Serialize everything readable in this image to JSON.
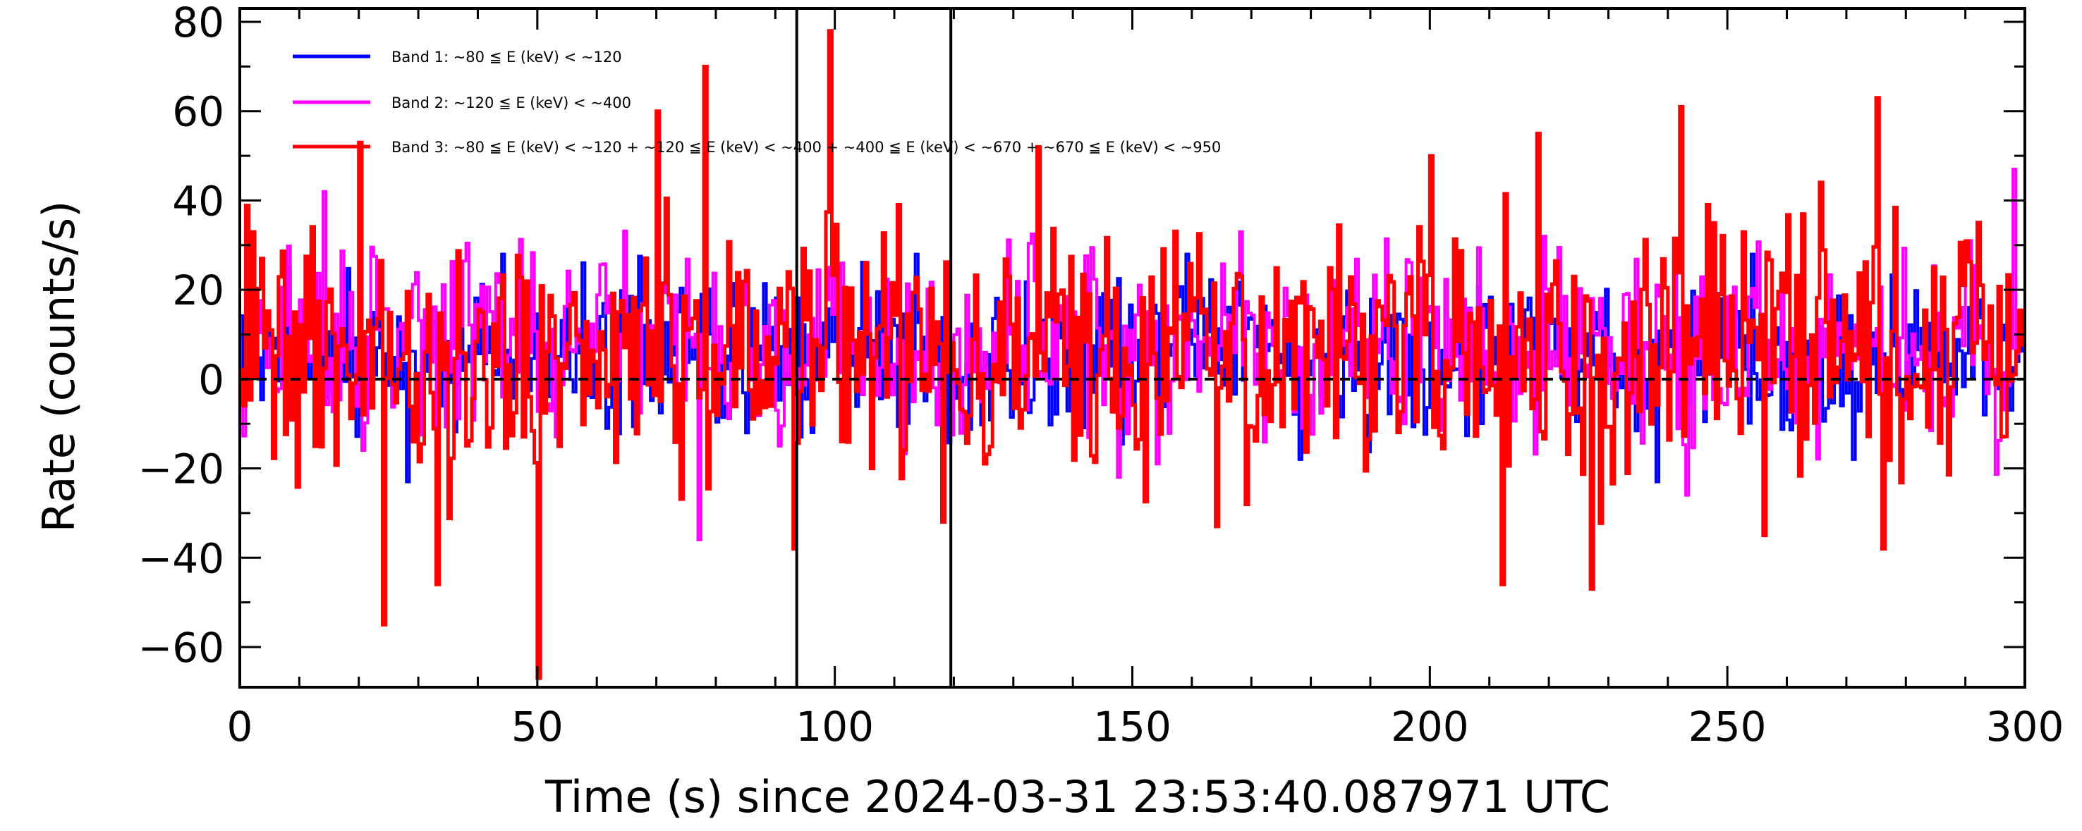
{
  "chart_data": {
    "type": "line",
    "xlabel": "Time (s) since 2024-03-31 23:53:40.087971 UTC",
    "ylabel": "Rate (counts/s)",
    "xlim": [
      0,
      300
    ],
    "ylim": [
      -69,
      83
    ],
    "xticks": [
      0,
      50,
      100,
      150,
      200,
      250,
      300
    ],
    "xtick_labels": [
      "0",
      "50",
      "100",
      "150",
      "200",
      "250",
      "300"
    ],
    "yticks": [
      -60,
      -40,
      -20,
      0,
      20,
      40,
      60,
      80
    ],
    "ytick_labels": [
      "−60",
      "−40",
      "−20",
      "0",
      "20",
      "40",
      "60",
      "80"
    ],
    "x_minor_step": 10,
    "y_minor_step": 10,
    "grid": false,
    "legend_position": "top-left",
    "vertical_lines": [
      93.6,
      119.5
    ],
    "reference_line": {
      "y": 0,
      "style": "dashed"
    },
    "bin_width": 0.5,
    "series": [
      {
        "name": "Band 1: ~80 ≦ E (keV) < ~120",
        "color": "#0000ff",
        "anchors": [
          [
            0,
            5
          ],
          [
            10,
            8
          ],
          [
            20,
            2
          ],
          [
            30,
            6
          ],
          [
            40,
            3
          ],
          [
            50,
            7
          ],
          [
            60,
            4
          ],
          [
            70,
            9
          ],
          [
            80,
            5
          ],
          [
            90,
            6
          ],
          [
            100,
            12
          ],
          [
            110,
            6
          ],
          [
            120,
            4
          ],
          [
            130,
            7
          ],
          [
            140,
            8
          ],
          [
            150,
            5
          ],
          [
            160,
            9
          ],
          [
            170,
            6
          ],
          [
            180,
            4
          ],
          [
            190,
            7
          ],
          [
            200,
            5
          ],
          [
            210,
            6
          ],
          [
            220,
            8
          ],
          [
            230,
            4
          ],
          [
            240,
            5
          ],
          [
            250,
            7
          ],
          [
            260,
            4
          ],
          [
            270,
            6
          ],
          [
            280,
            5
          ],
          [
            290,
            6
          ],
          [
            300,
            4
          ]
        ],
        "noise_amplitude": 12,
        "peaks": [
          [
            28,
            -23
          ],
          [
            44,
            28
          ],
          [
            96,
            -12
          ],
          [
            159,
            28
          ],
          [
            178,
            -18
          ],
          [
            238,
            -23
          ],
          [
            254,
            28
          ],
          [
            271,
            -18
          ]
        ]
      },
      {
        "name": "Band 2: ~120 ≦ E (keV) < ~400",
        "color": "#ff00ff",
        "anchors": [
          [
            0,
            5
          ],
          [
            10,
            9
          ],
          [
            20,
            4
          ],
          [
            30,
            8
          ],
          [
            40,
            6
          ],
          [
            50,
            3
          ],
          [
            60,
            8
          ],
          [
            70,
            10
          ],
          [
            80,
            4
          ],
          [
            90,
            7
          ],
          [
            100,
            14
          ],
          [
            110,
            7
          ],
          [
            120,
            5
          ],
          [
            130,
            8
          ],
          [
            140,
            9
          ],
          [
            150,
            4
          ],
          [
            160,
            10
          ],
          [
            170,
            7
          ],
          [
            180,
            5
          ],
          [
            190,
            8
          ],
          [
            200,
            6
          ],
          [
            210,
            7
          ],
          [
            220,
            9
          ],
          [
            230,
            5
          ],
          [
            240,
            6
          ],
          [
            250,
            8
          ],
          [
            260,
            5
          ],
          [
            270,
            7
          ],
          [
            280,
            6
          ],
          [
            290,
            7
          ],
          [
            300,
            5
          ]
        ],
        "noise_amplitude": 15,
        "peaks": [
          [
            14,
            42
          ],
          [
            77,
            -36
          ],
          [
            101,
            26
          ],
          [
            154,
            -19
          ],
          [
            168,
            33
          ],
          [
            219,
            32
          ],
          [
            243,
            -26
          ],
          [
            298,
            47
          ]
        ]
      },
      {
        "name": "Band 3: ~80 ≦ E (keV) < ~120 + ~120 ≦ E (keV) < ~400 + ~400 ≦ E (keV) < ~670 + ~670 ≦ E (keV) < ~950",
        "color": "#ff0000",
        "anchors": [
          [
            0,
            6
          ],
          [
            10,
            10
          ],
          [
            20,
            3
          ],
          [
            30,
            7
          ],
          [
            40,
            5
          ],
          [
            50,
            2
          ],
          [
            60,
            8
          ],
          [
            70,
            11
          ],
          [
            80,
            6
          ],
          [
            90,
            5
          ],
          [
            100,
            16
          ],
          [
            110,
            6
          ],
          [
            120,
            3
          ],
          [
            130,
            9
          ],
          [
            140,
            11
          ],
          [
            150,
            4
          ],
          [
            160,
            5
          ],
          [
            170,
            10
          ],
          [
            180,
            6
          ],
          [
            190,
            8
          ],
          [
            200,
            5
          ],
          [
            210,
            9
          ],
          [
            220,
            10
          ],
          [
            230,
            4
          ],
          [
            240,
            7
          ],
          [
            250,
            8
          ],
          [
            260,
            6
          ],
          [
            270,
            9
          ],
          [
            280,
            5
          ],
          [
            290,
            7
          ],
          [
            300,
            4
          ]
        ],
        "noise_amplitude": 20,
        "peaks": [
          [
            20,
            53
          ],
          [
            24,
            -55
          ],
          [
            33,
            -46
          ],
          [
            50,
            -67
          ],
          [
            70,
            60
          ],
          [
            78,
            70
          ],
          [
            93,
            -38
          ],
          [
            99,
            78
          ],
          [
            101,
            -14
          ],
          [
            106,
            -20
          ],
          [
            118,
            -32
          ],
          [
            134,
            52
          ],
          [
            164,
            -33
          ],
          [
            200,
            50
          ],
          [
            212,
            -46
          ],
          [
            218,
            55
          ],
          [
            227,
            -47
          ],
          [
            242,
            61
          ],
          [
            256,
            -35
          ],
          [
            275,
            63
          ],
          [
            276,
            -38
          ]
        ]
      }
    ]
  }
}
